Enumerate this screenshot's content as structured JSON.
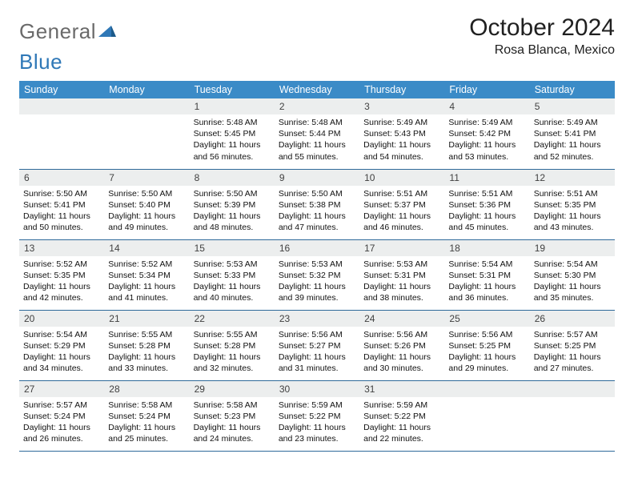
{
  "brand": {
    "part1": "General",
    "part2": "Blue"
  },
  "title": "October 2024",
  "location": "Rosa Blanca, Mexico",
  "colors": {
    "header_bg": "#3b8bc7",
    "header_text": "#ffffff",
    "daynum_bg": "#eceeee",
    "daynum_text": "#414141",
    "row_border": "#2f6a9a",
    "logo_gray": "#6a6a6a",
    "logo_blue": "#2f78b7",
    "page_bg": "#ffffff",
    "body_text": "#111111"
  },
  "weekdays": [
    "Sunday",
    "Monday",
    "Tuesday",
    "Wednesday",
    "Thursday",
    "Friday",
    "Saturday"
  ],
  "first_weekday_index": 2,
  "days": [
    {
      "n": 1,
      "sunrise": "5:48 AM",
      "sunset": "5:45 PM",
      "daylight": "11 hours and 56 minutes."
    },
    {
      "n": 2,
      "sunrise": "5:48 AM",
      "sunset": "5:44 PM",
      "daylight": "11 hours and 55 minutes."
    },
    {
      "n": 3,
      "sunrise": "5:49 AM",
      "sunset": "5:43 PM",
      "daylight": "11 hours and 54 minutes."
    },
    {
      "n": 4,
      "sunrise": "5:49 AM",
      "sunset": "5:42 PM",
      "daylight": "11 hours and 53 minutes."
    },
    {
      "n": 5,
      "sunrise": "5:49 AM",
      "sunset": "5:41 PM",
      "daylight": "11 hours and 52 minutes."
    },
    {
      "n": 6,
      "sunrise": "5:50 AM",
      "sunset": "5:41 PM",
      "daylight": "11 hours and 50 minutes."
    },
    {
      "n": 7,
      "sunrise": "5:50 AM",
      "sunset": "5:40 PM",
      "daylight": "11 hours and 49 minutes."
    },
    {
      "n": 8,
      "sunrise": "5:50 AM",
      "sunset": "5:39 PM",
      "daylight": "11 hours and 48 minutes."
    },
    {
      "n": 9,
      "sunrise": "5:50 AM",
      "sunset": "5:38 PM",
      "daylight": "11 hours and 47 minutes."
    },
    {
      "n": 10,
      "sunrise": "5:51 AM",
      "sunset": "5:37 PM",
      "daylight": "11 hours and 46 minutes."
    },
    {
      "n": 11,
      "sunrise": "5:51 AM",
      "sunset": "5:36 PM",
      "daylight": "11 hours and 45 minutes."
    },
    {
      "n": 12,
      "sunrise": "5:51 AM",
      "sunset": "5:35 PM",
      "daylight": "11 hours and 43 minutes."
    },
    {
      "n": 13,
      "sunrise": "5:52 AM",
      "sunset": "5:35 PM",
      "daylight": "11 hours and 42 minutes."
    },
    {
      "n": 14,
      "sunrise": "5:52 AM",
      "sunset": "5:34 PM",
      "daylight": "11 hours and 41 minutes."
    },
    {
      "n": 15,
      "sunrise": "5:53 AM",
      "sunset": "5:33 PM",
      "daylight": "11 hours and 40 minutes."
    },
    {
      "n": 16,
      "sunrise": "5:53 AM",
      "sunset": "5:32 PM",
      "daylight": "11 hours and 39 minutes."
    },
    {
      "n": 17,
      "sunrise": "5:53 AM",
      "sunset": "5:31 PM",
      "daylight": "11 hours and 38 minutes."
    },
    {
      "n": 18,
      "sunrise": "5:54 AM",
      "sunset": "5:31 PM",
      "daylight": "11 hours and 36 minutes."
    },
    {
      "n": 19,
      "sunrise": "5:54 AM",
      "sunset": "5:30 PM",
      "daylight": "11 hours and 35 minutes."
    },
    {
      "n": 20,
      "sunrise": "5:54 AM",
      "sunset": "5:29 PM",
      "daylight": "11 hours and 34 minutes."
    },
    {
      "n": 21,
      "sunrise": "5:55 AM",
      "sunset": "5:28 PM",
      "daylight": "11 hours and 33 minutes."
    },
    {
      "n": 22,
      "sunrise": "5:55 AM",
      "sunset": "5:28 PM",
      "daylight": "11 hours and 32 minutes."
    },
    {
      "n": 23,
      "sunrise": "5:56 AM",
      "sunset": "5:27 PM",
      "daylight": "11 hours and 31 minutes."
    },
    {
      "n": 24,
      "sunrise": "5:56 AM",
      "sunset": "5:26 PM",
      "daylight": "11 hours and 30 minutes."
    },
    {
      "n": 25,
      "sunrise": "5:56 AM",
      "sunset": "5:25 PM",
      "daylight": "11 hours and 29 minutes."
    },
    {
      "n": 26,
      "sunrise": "5:57 AM",
      "sunset": "5:25 PM",
      "daylight": "11 hours and 27 minutes."
    },
    {
      "n": 27,
      "sunrise": "5:57 AM",
      "sunset": "5:24 PM",
      "daylight": "11 hours and 26 minutes."
    },
    {
      "n": 28,
      "sunrise": "5:58 AM",
      "sunset": "5:24 PM",
      "daylight": "11 hours and 25 minutes."
    },
    {
      "n": 29,
      "sunrise": "5:58 AM",
      "sunset": "5:23 PM",
      "daylight": "11 hours and 24 minutes."
    },
    {
      "n": 30,
      "sunrise": "5:59 AM",
      "sunset": "5:22 PM",
      "daylight": "11 hours and 23 minutes."
    },
    {
      "n": 31,
      "sunrise": "5:59 AM",
      "sunset": "5:22 PM",
      "daylight": "11 hours and 22 minutes."
    }
  ],
  "labels": {
    "sunrise": "Sunrise: ",
    "sunset": "Sunset: ",
    "daylight": "Daylight: "
  }
}
